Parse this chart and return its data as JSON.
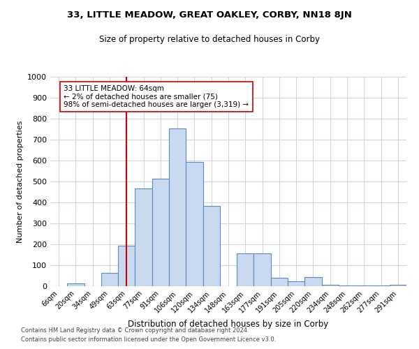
{
  "title1": "33, LITTLE MEADOW, GREAT OAKLEY, CORBY, NN18 8JN",
  "title2": "Size of property relative to detached houses in Corby",
  "xlabel": "Distribution of detached houses by size in Corby",
  "ylabel": "Number of detached properties",
  "categories": [
    "6sqm",
    "20sqm",
    "34sqm",
    "49sqm",
    "63sqm",
    "77sqm",
    "91sqm",
    "106sqm",
    "120sqm",
    "134sqm",
    "148sqm",
    "163sqm",
    "177sqm",
    "191sqm",
    "205sqm",
    "220sqm",
    "234sqm",
    "248sqm",
    "262sqm",
    "277sqm",
    "291sqm"
  ],
  "values": [
    0,
    12,
    0,
    62,
    193,
    468,
    515,
    753,
    595,
    385,
    0,
    157,
    157,
    40,
    22,
    45,
    7,
    2,
    2,
    2,
    8
  ],
  "bar_color": "#c9d9f0",
  "bar_edge_color": "#5a8ac6",
  "vline_x": 4,
  "vline_color": "#cc0000",
  "annotation_text": "33 LITTLE MEADOW: 64sqm\n← 2% of detached houses are smaller (75)\n98% of semi-detached houses are larger (3,319) →",
  "annotation_box_color": "#ffffff",
  "annotation_box_edge": "#cc0000",
  "ylim": [
    0,
    1000
  ],
  "yticks": [
    0,
    100,
    200,
    300,
    400,
    500,
    600,
    700,
    800,
    900,
    1000
  ],
  "footnote1": "Contains HM Land Registry data © Crown copyright and database right 2024.",
  "footnote2": "Contains public sector information licensed under the Open Government Licence v3.0.",
  "bg_color": "#ffffff",
  "grid_color": "#c8d4e8"
}
